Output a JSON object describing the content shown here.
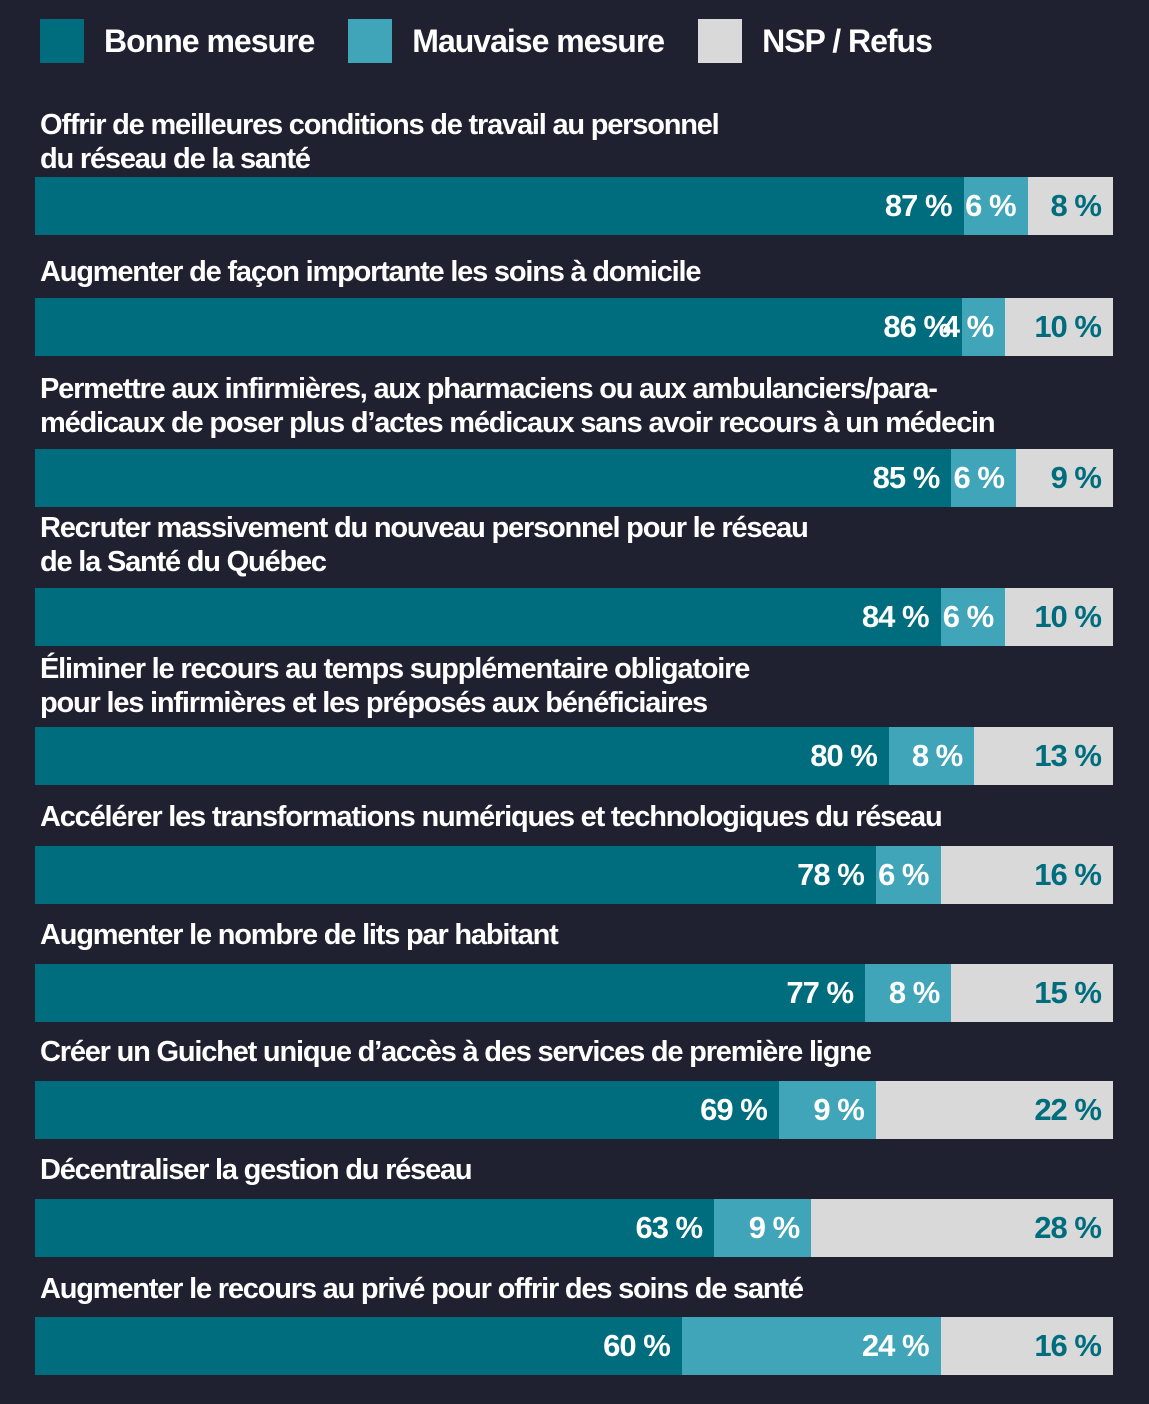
{
  "colors": {
    "background": "#1f2130",
    "bonne": "#006d7e",
    "mauvaise": "#40a5b9",
    "nsp": "#d9d9d9",
    "nsp_text": "#006d7e",
    "text": "#ffffff"
  },
  "legend": [
    {
      "label": "Bonne mesure",
      "color": "#006d7e"
    },
    {
      "label": "Mauvaise mesure",
      "color": "#40a5b9"
    },
    {
      "label": "NSP / Refus",
      "color": "#d9d9d9"
    }
  ],
  "chart_data": {
    "type": "bar",
    "orientation": "horizontal",
    "stacked": true,
    "title": "",
    "xlabel": "",
    "ylabel": "",
    "legend_position": "top-left",
    "unit": "%",
    "categories": [
      "Offrir de meilleures conditions de travail au personnel\ndu réseau de la santé",
      "Augmenter de façon importante les soins à domicile",
      "Permettre aux infirmières, aux pharmaciens ou aux ambulanciers/para-\nmédicaux de poser plus d’actes médicaux sans avoir recours à un médecin",
      "Recruter massivement du nouveau personnel pour le réseau\nde la Santé du Québec",
      "Éliminer le recours au temps supplémentaire obligatoire\npour les infirmières et les préposés aux bénéficiaires",
      "Accélérer les transformations numériques et technologiques du réseau",
      "Augmenter le nombre de lits par habitant",
      "Créer un Guichet unique d’accès à des services de première ligne",
      "Décentraliser la gestion du réseau",
      "Augmenter le recours au privé pour offrir des soins de santé"
    ],
    "series": [
      {
        "name": "Bonne mesure",
        "values": [
          87,
          86,
          85,
          84,
          80,
          78,
          77,
          69,
          63,
          60
        ]
      },
      {
        "name": "Mauvaise mesure",
        "values": [
          6,
          4,
          6,
          6,
          8,
          6,
          8,
          9,
          9,
          24
        ]
      },
      {
        "name": "NSP / Refus",
        "values": [
          8,
          10,
          9,
          10,
          13,
          16,
          15,
          22,
          28,
          16
        ]
      }
    ],
    "value_labels": [
      [
        "87 %",
        "6 %",
        "8 %"
      ],
      [
        "86 %",
        "4 %",
        "10 %"
      ],
      [
        "85 %",
        "6 %",
        "9 %"
      ],
      [
        "84 %",
        "6 %",
        "10 %"
      ],
      [
        "80 %",
        "8 %",
        "13 %"
      ],
      [
        "78 %",
        "6 %",
        "16 %"
      ],
      [
        "77 %",
        "8 %",
        "15 %"
      ],
      [
        "69 %",
        "9 %",
        "22 %"
      ],
      [
        "63 %",
        "9 %",
        "28 %"
      ],
      [
        "60 %",
        "24 %",
        "16 %"
      ]
    ]
  }
}
